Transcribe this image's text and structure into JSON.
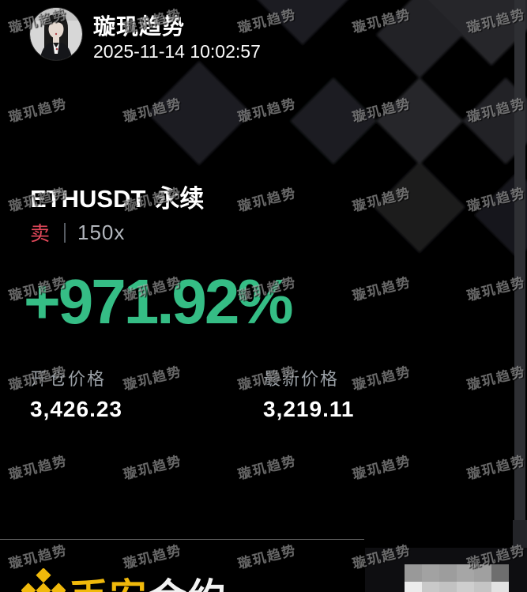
{
  "card": {
    "user": {
      "name": "璇玑趋势",
      "timestamp": "2025-11-14 10:02:57"
    },
    "position": {
      "symbol": "ETHUSDT",
      "contract": "永续",
      "side": "卖",
      "leverage": "150x",
      "roi": "+971.92%"
    },
    "prices": {
      "open": {
        "label": "开仓价格",
        "value": "3,426.23"
      },
      "last": {
        "label": "最新价格",
        "value": "3,219.11"
      }
    },
    "footer": {
      "brand_primary": "币安",
      "brand_secondary": "合约"
    }
  },
  "watermark": {
    "text": "璇玑趋势"
  },
  "qr_mosaic": {
    "rows": [
      [
        "#999999",
        "#a2a2a2",
        "#9d9d9d",
        "#a6a6a6",
        "#a0a0a0",
        "#6e6e6e"
      ],
      [
        "#ececec",
        "#c9c9c9",
        "#c2c2c2",
        "#cecece",
        "#c5c5c5",
        "#e2e2e2"
      ]
    ]
  },
  "colors": {
    "background": "#000000",
    "profit_green": "#35bd85",
    "sell_red": "#e2485a",
    "brand_yellow": "#f0b90b",
    "label_grey": "#9aa0a6"
  },
  "icons": {
    "avatar": "user-portrait-photo",
    "binance_logo": "binance-diamond-logo",
    "background_pattern": "binance-diamond-watermark"
  }
}
